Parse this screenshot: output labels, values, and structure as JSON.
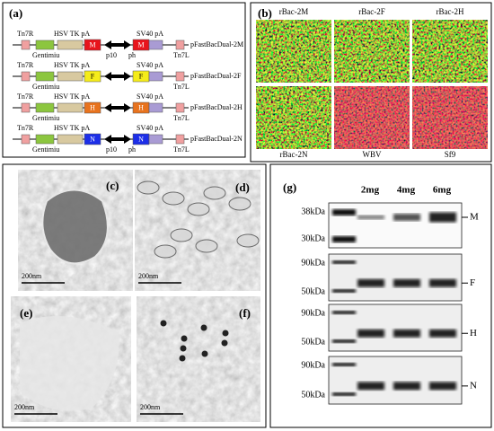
{
  "panel_a": {
    "label": "(a)",
    "constructs": [
      {
        "left_label": "Tn7R",
        "tk_label": "HSV TK pA",
        "sv40_label": "SV40 pA",
        "gene": "M",
        "gene_color": "#e8141c",
        "gene_text_color": "#ffffff",
        "name": "pFastBacDual-2M",
        "marker_label": "Gentimiu",
        "promoter_labels": [
          "p10",
          "ph"
        ],
        "end_label": "Tn7L"
      },
      {
        "left_label": "Tn7R",
        "tk_label": "HSV TK pA",
        "sv40_label": "SV40 pA",
        "gene": "F",
        "gene_color": "#f5ec1a",
        "gene_text_color": "#000000",
        "name": "pFastBacDual-2F",
        "marker_label": "Gentimiu",
        "end_label": "Tn7L"
      },
      {
        "left_label": "Tn7R",
        "tk_label": "HSV TK pA",
        "sv40_label": "SV40 pA",
        "gene": "H",
        "gene_color": "#e8731e",
        "gene_text_color": "#ffffff",
        "name": "pFastBacDual-2H",
        "marker_label": "Gentimiu",
        "end_label": "Tn7L"
      },
      {
        "left_label": "Tn7R",
        "tk_label": "HSV TK pA",
        "sv40_label": "SV40 pA",
        "gene": "N",
        "gene_color": "#1c2ee8",
        "gene_text_color": "#ffffff",
        "name": "pFastBacDual-2N",
        "marker_label": "Gentimiu",
        "promoter_labels": [
          "p10",
          "ph"
        ],
        "end_label": "Tn7L"
      }
    ]
  },
  "panel_b": {
    "label": "(b)",
    "wells": [
      {
        "name": "rBac-2M",
        "stain": "green"
      },
      {
        "name": "rBac-2F",
        "stain": "green"
      },
      {
        "name": "rBac-2H",
        "stain": "green"
      },
      {
        "name": "rBac-2N",
        "stain": "green"
      },
      {
        "name": "WBV",
        "stain": "red"
      },
      {
        "name": "Sf9",
        "stain": "red"
      }
    ]
  },
  "panel_em": {
    "images": [
      {
        "label": "(c)",
        "scale": "200nm"
      },
      {
        "label": "(d)",
        "scale": "200nm"
      },
      {
        "label": "(e)",
        "scale": "200nm"
      },
      {
        "label": "(f)",
        "scale": "200nm"
      }
    ]
  },
  "panel_g": {
    "label": "(g)",
    "lanes": [
      "2mg",
      "4mg",
      "6mg"
    ],
    "blots": [
      {
        "protein": "M",
        "markers": [
          "38kDa",
          "30kDa"
        ]
      },
      {
        "protein": "F",
        "markers": [
          "90kDa",
          "50kDa"
        ]
      },
      {
        "protein": "H",
        "markers": [
          "90kDa",
          "50kDa"
        ]
      },
      {
        "protein": "N",
        "markers": [
          "90kDa",
          "50kDa"
        ]
      }
    ]
  }
}
